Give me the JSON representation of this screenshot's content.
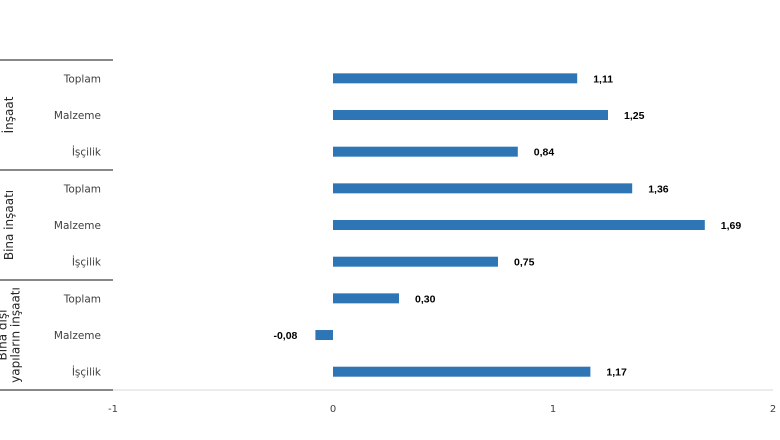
{
  "chart_data": {
    "type": "bar",
    "orientation": "horizontal",
    "groups": [
      {
        "name": "İnşaat",
        "categories": [
          "Toplam",
          "Malzeme",
          "İşçilik"
        ],
        "values": [
          1.11,
          1.25,
          0.84
        ]
      },
      {
        "name": "Bina inşaatı",
        "categories": [
          "Toplam",
          "Malzeme",
          "İşçilik"
        ],
        "values": [
          1.36,
          1.69,
          0.75
        ]
      },
      {
        "name": "Bina dışı yapıların inşaatı",
        "name_lines": [
          "Bina dışı",
          "yapıların inşaatı"
        ],
        "categories": [
          "Toplam",
          "Malzeme",
          "İşçilik"
        ],
        "values": [
          0.3,
          -0.08,
          1.17
        ]
      }
    ],
    "data_labels": [
      [
        "1,11",
        "1,25",
        "0,84"
      ],
      [
        "1,36",
        "1,69",
        "0,75"
      ],
      [
        "0,30",
        "-0,08",
        "1,17"
      ]
    ],
    "xlim": [
      -1,
      2
    ],
    "xticks": [
      -1,
      0,
      1,
      2
    ],
    "xtick_labels": [
      "-1",
      "0",
      "1",
      "2"
    ],
    "bar_color": "#2e75b6",
    "grid": false,
    "legend": "none",
    "title": "",
    "xlabel": "",
    "ylabel": ""
  }
}
